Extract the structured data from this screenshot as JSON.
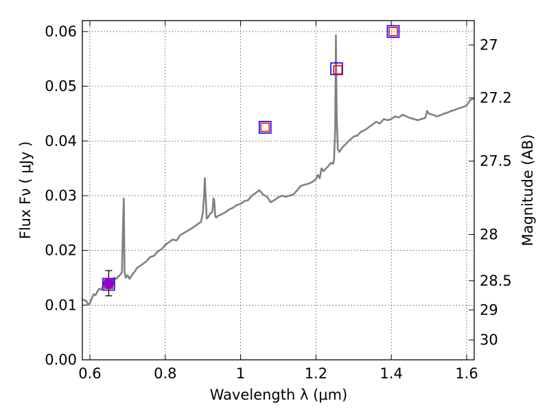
{
  "chart_data": {
    "type": "line",
    "xlabel": "Wavelength  λ (μm)",
    "ylabel": "Flux  Fν  ( μJy )",
    "y2label": "Magnitude (AB)",
    "xlim": [
      0.58,
      1.62
    ],
    "ylim": [
      0.0,
      0.062
    ],
    "grid": true,
    "x_ticks": [
      {
        "value": 0.6,
        "label": "0.6"
      },
      {
        "value": 0.8,
        "label": "0.8"
      },
      {
        "value": 1.0,
        "label": "1"
      },
      {
        "value": 1.2,
        "label": "1.2"
      },
      {
        "value": 1.4,
        "label": "1.4"
      },
      {
        "value": 1.6,
        "label": "1.6"
      }
    ],
    "y_ticks": [
      {
        "value": 0.0,
        "label": "0.00"
      },
      {
        "value": 0.01,
        "label": "0.01"
      },
      {
        "value": 0.02,
        "label": "0.02"
      },
      {
        "value": 0.03,
        "label": "0.03"
      },
      {
        "value": 0.04,
        "label": "0.04"
      },
      {
        "value": 0.05,
        "label": "0.05"
      },
      {
        "value": 0.06,
        "label": "0.06"
      }
    ],
    "y2_ticks": [
      {
        "mag": 27.0,
        "label": "27"
      },
      {
        "mag": 27.2,
        "label": "27.2"
      },
      {
        "mag": 27.5,
        "label": "27.5"
      },
      {
        "mag": 28.0,
        "label": "28"
      },
      {
        "mag": 28.5,
        "label": "28.5"
      },
      {
        "mag": 29.0,
        "label": "29"
      },
      {
        "mag": 30.0,
        "label": "30"
      }
    ],
    "series": [
      {
        "type": "line",
        "color": "#808080",
        "x": [
          0.58,
          0.59,
          0.595,
          0.6,
          0.605,
          0.61,
          0.615,
          0.62,
          0.625,
          0.63,
          0.635,
          0.64,
          0.645,
          0.65,
          0.655,
          0.66,
          0.665,
          0.67,
          0.675,
          0.68,
          0.685,
          0.688,
          0.69,
          0.692,
          0.695,
          0.7,
          0.705,
          0.71,
          0.715,
          0.72,
          0.725,
          0.73,
          0.74,
          0.75,
          0.76,
          0.77,
          0.78,
          0.79,
          0.8,
          0.81,
          0.82,
          0.83,
          0.84,
          0.85,
          0.86,
          0.87,
          0.88,
          0.89,
          0.895,
          0.9,
          0.903,
          0.905,
          0.908,
          0.91,
          0.915,
          0.92,
          0.925,
          0.928,
          0.93,
          0.933,
          0.935,
          0.94,
          0.95,
          0.96,
          0.97,
          0.98,
          0.99,
          1.0,
          1.01,
          1.02,
          1.03,
          1.04,
          1.05,
          1.06,
          1.07,
          1.08,
          1.09,
          1.1,
          1.11,
          1.12,
          1.13,
          1.14,
          1.15,
          1.16,
          1.17,
          1.18,
          1.19,
          1.2,
          1.205,
          1.21,
          1.215,
          1.22,
          1.23,
          1.24,
          1.245,
          1.248,
          1.251,
          1.253,
          1.255,
          1.258,
          1.262,
          1.27,
          1.28,
          1.29,
          1.3,
          1.31,
          1.32,
          1.33,
          1.34,
          1.35,
          1.36,
          1.37,
          1.38,
          1.39,
          1.4,
          1.41,
          1.42,
          1.43,
          1.44,
          1.45,
          1.46,
          1.47,
          1.48,
          1.49,
          1.495,
          1.5,
          1.51,
          1.52,
          1.53,
          1.54,
          1.55,
          1.56,
          1.57,
          1.58,
          1.59,
          1.6,
          1.61,
          1.62
        ],
        "y": [
          0.011,
          0.0108,
          0.0101,
          0.0103,
          0.0112,
          0.012,
          0.0118,
          0.0125,
          0.013,
          0.0128,
          0.0135,
          0.014,
          0.0138,
          0.0142,
          0.014,
          0.0143,
          0.015,
          0.0148,
          0.0152,
          0.0155,
          0.016,
          0.025,
          0.0295,
          0.016,
          0.015,
          0.0155,
          0.0148,
          0.0153,
          0.0158,
          0.0162,
          0.0168,
          0.017,
          0.0175,
          0.018,
          0.0188,
          0.019,
          0.0198,
          0.0202,
          0.021,
          0.0215,
          0.022,
          0.0218,
          0.0228,
          0.0232,
          0.0236,
          0.024,
          0.0245,
          0.025,
          0.0252,
          0.027,
          0.03,
          0.0332,
          0.029,
          0.0258,
          0.0262,
          0.0268,
          0.027,
          0.0295,
          0.0292,
          0.0262,
          0.026,
          0.0263,
          0.0266,
          0.027,
          0.0275,
          0.0278,
          0.0283,
          0.0285,
          0.029,
          0.0292,
          0.03,
          0.0305,
          0.031,
          0.0302,
          0.0298,
          0.0288,
          0.0292,
          0.0297,
          0.03,
          0.0298,
          0.03,
          0.0302,
          0.031,
          0.0318,
          0.032,
          0.0322,
          0.0325,
          0.033,
          0.0338,
          0.0332,
          0.035,
          0.0345,
          0.0352,
          0.036,
          0.0358,
          0.0365,
          0.042,
          0.0593,
          0.045,
          0.0385,
          0.038,
          0.0388,
          0.0395,
          0.0402,
          0.0408,
          0.041,
          0.0417,
          0.042,
          0.0425,
          0.043,
          0.0435,
          0.0432,
          0.044,
          0.0438,
          0.044,
          0.0445,
          0.0443,
          0.0448,
          0.0445,
          0.0442,
          0.044,
          0.0438,
          0.044,
          0.0442,
          0.0455,
          0.045,
          0.0448,
          0.0445,
          0.0447,
          0.045,
          0.0452,
          0.0455,
          0.0457,
          0.046,
          0.0462,
          0.0465,
          0.0475,
          0.0478
        ]
      },
      {
        "type": "scatter",
        "marker": "square-open",
        "color": "#0000ff",
        "points": [
          {
            "x": 0.65,
            "y": 0.0138
          },
          {
            "x": 1.065,
            "y": 0.0425
          },
          {
            "x": 1.255,
            "y": 0.0532
          },
          {
            "x": 1.405,
            "y": 0.06
          }
        ]
      },
      {
        "type": "scatter",
        "marker": "square-open-small",
        "color": "#ff0000",
        "points": [
          {
            "x": 0.65,
            "y": 0.0138
          },
          {
            "x": 1.065,
            "y": 0.0425
          },
          {
            "x": 1.258,
            "y": 0.053
          },
          {
            "x": 1.405,
            "y": 0.06
          }
        ]
      },
      {
        "type": "errorbar",
        "marker": "circle",
        "color": "#9b00c8",
        "points": [
          {
            "x": 0.65,
            "y": 0.014,
            "yerr": 0.0023
          }
        ]
      }
    ]
  }
}
